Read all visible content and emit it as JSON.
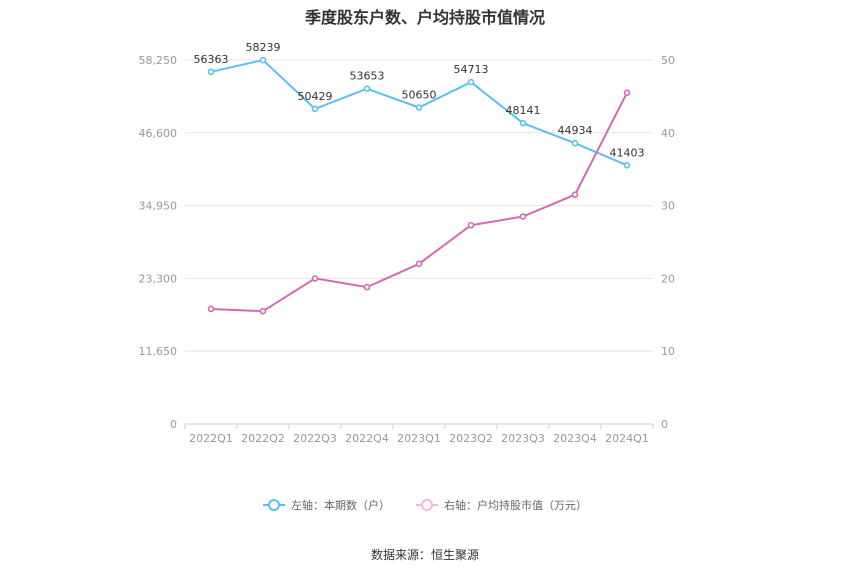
{
  "chart_data": {
    "type": "line",
    "title": "季度股东户数、户均持股市值情况",
    "categories": [
      "2022Q1",
      "2022Q2",
      "2022Q3",
      "2022Q4",
      "2023Q1",
      "2023Q2",
      "2023Q3",
      "2023Q4",
      "2024Q1"
    ],
    "series": [
      {
        "name": "左轴：本期数（户）",
        "axis": "left",
        "color": "#5bc0eb",
        "values": [
          56363,
          58239,
          50429,
          53653,
          50650,
          54713,
          48141,
          44934,
          41403
        ]
      },
      {
        "name": "右轴：户均持股市值（万元）",
        "axis": "right",
        "color": "#d36ab0",
        "values": [
          15.8,
          15.5,
          20.0,
          18.8,
          22.0,
          27.3,
          28.5,
          31.5,
          45.5
        ]
      }
    ],
    "left_axis": {
      "ylim": [
        0,
        58250
      ],
      "ticks": [
        "0",
        "11,650",
        "23,300",
        "34,950",
        "46,600",
        "58,250"
      ]
    },
    "right_axis": {
      "ylim": [
        0,
        50
      ],
      "ticks": [
        "0",
        "10",
        "20",
        "30",
        "40",
        "50"
      ]
    },
    "grid": true,
    "legend_position": "bottom"
  },
  "source": "数据来源：恒生聚源"
}
